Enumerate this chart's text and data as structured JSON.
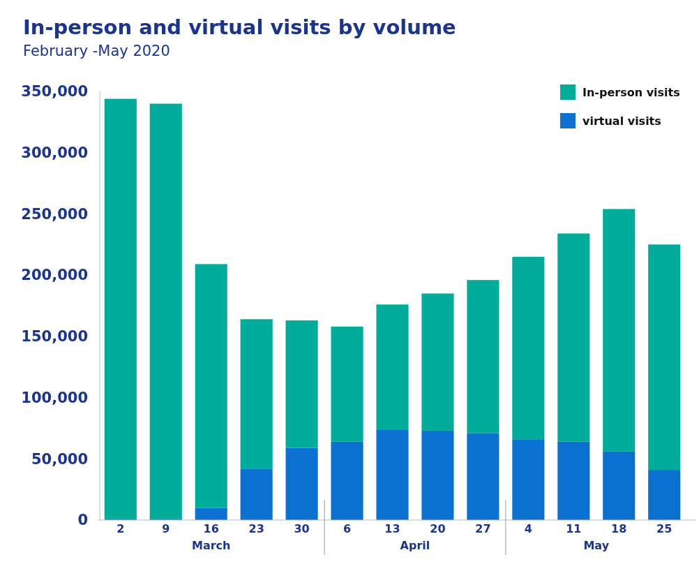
{
  "chart_data": {
    "type": "bar",
    "title": "In-person and virtual visits by volume",
    "subtitle": "February -May 2020",
    "categories": [
      "2",
      "9",
      "16",
      "23",
      "30",
      "6",
      "13",
      "20",
      "27",
      "4",
      "11",
      "18",
      "25"
    ],
    "stacked": true,
    "series": [
      {
        "name": "virtual visits",
        "color": "#0a71d1",
        "values": [
          1000,
          1000,
          10000,
          42000,
          59000,
          64000,
          74000,
          73000,
          71000,
          66000,
          64000,
          56000,
          41000
        ]
      },
      {
        "name": "In-person visits",
        "color": "#00ad9a",
        "values": [
          343000,
          339000,
          199000,
          122000,
          104000,
          94000,
          102000,
          112000,
          125000,
          149000,
          170000,
          198000,
          184000
        ]
      }
    ],
    "ylim": [
      0,
      350000
    ],
    "yticks": [
      {
        "value": 0,
        "label": "0"
      },
      {
        "value": 50000,
        "label": "50,000"
      },
      {
        "value": 100000,
        "label": "100,000"
      },
      {
        "value": 150000,
        "label": "150,000"
      },
      {
        "value": 200000,
        "label": "200,000"
      },
      {
        "value": 250000,
        "label": "250,000"
      },
      {
        "value": 300000,
        "label": "300,000"
      },
      {
        "value": 350000,
        "label": "350,000"
      }
    ],
    "annotations": [
      "March",
      "April",
      "May"
    ],
    "legend": "top right",
    "grid": false
  }
}
